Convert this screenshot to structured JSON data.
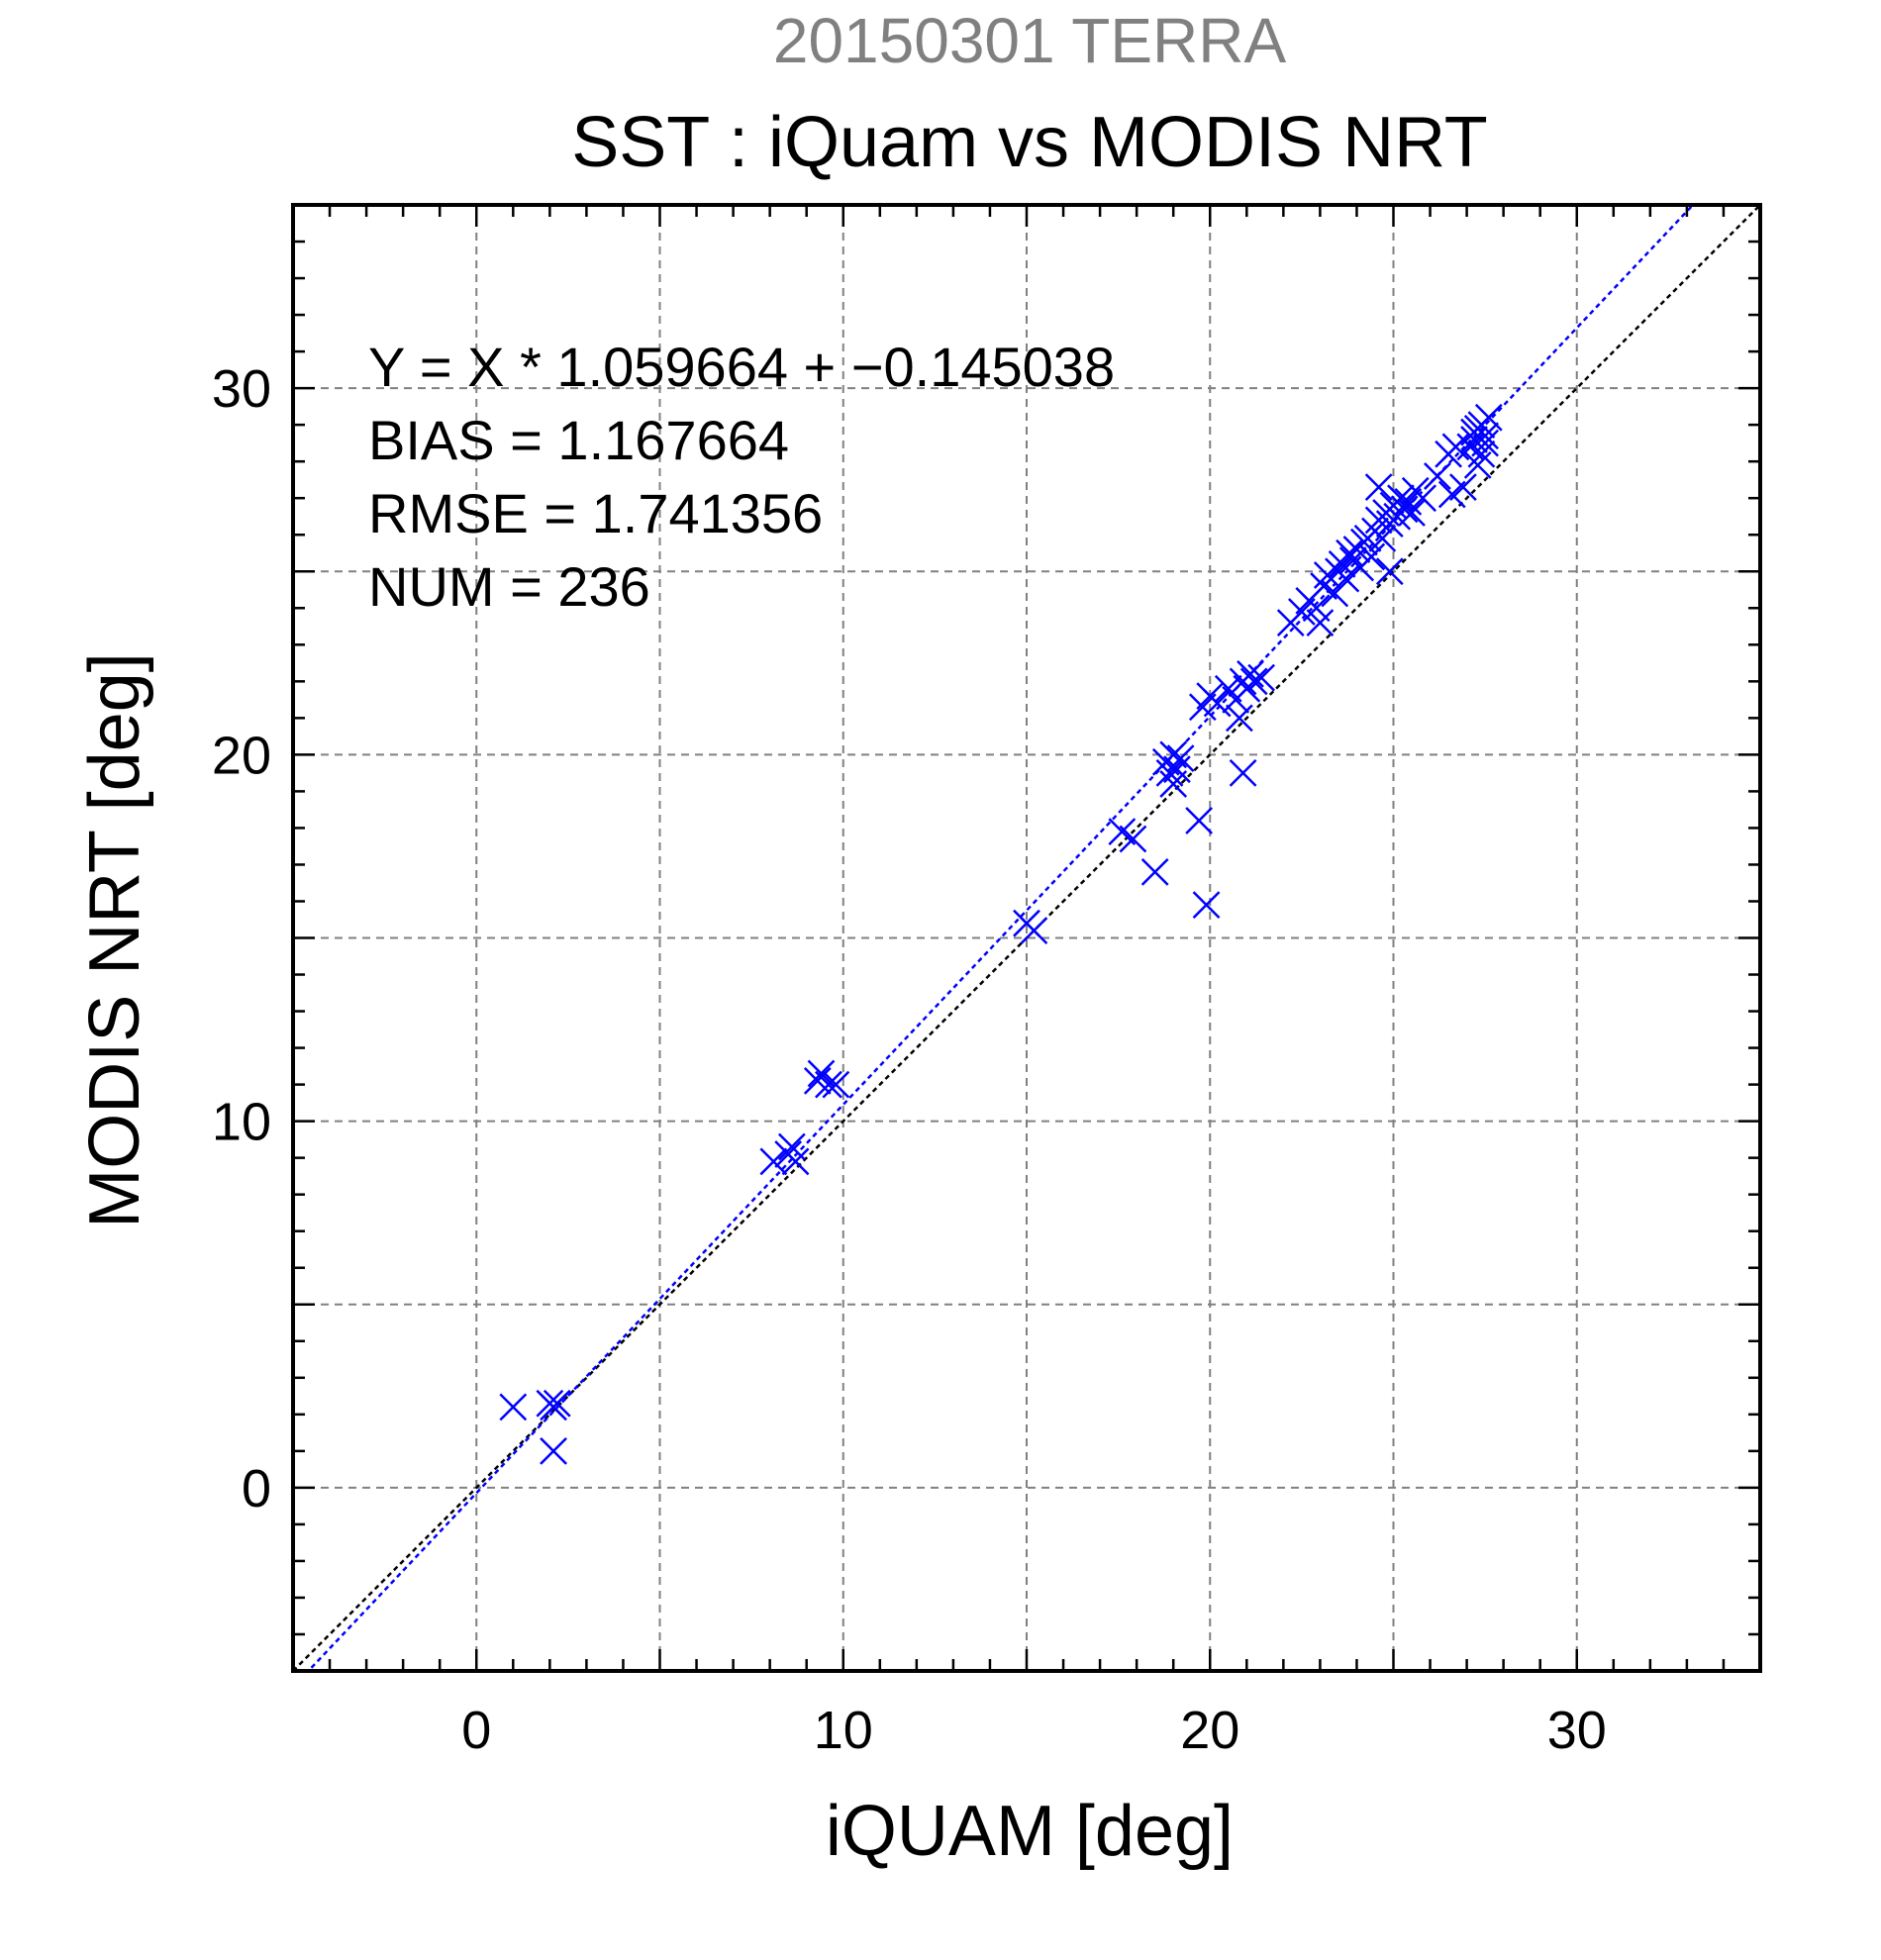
{
  "chart_data": {
    "type": "scatter",
    "title": "SST : iQuam vs MODIS NRT",
    "subtitle": "20150301 TERRA",
    "xlabel": "iQUAM [deg]",
    "ylabel": "MODIS NRT [deg]",
    "xlim": [
      -5,
      35
    ],
    "ylim": [
      -5,
      35
    ],
    "xticks": [
      0,
      10,
      20,
      30
    ],
    "yticks": [
      0,
      10,
      20,
      30
    ],
    "xtick_labels": [
      "0",
      "10",
      "20",
      "30"
    ],
    "ytick_labels": [
      "0",
      "10",
      "20",
      "30"
    ],
    "grid": true,
    "annotations": [
      "Y = X * 1.059664 + −0.145038",
      "BIAS = 1.167664",
      "RMSE = 1.741356",
      "NUM = 236"
    ],
    "fit": {
      "slope": 1.059664,
      "intercept": -0.145038
    },
    "colors": {
      "points": "#0000ff",
      "fit_line": "#0000ff",
      "identity_line": "#000000",
      "subtitle": "#808080",
      "grid": "#808080"
    },
    "points": [
      [
        1.0,
        2.2
      ],
      [
        2.0,
        2.3
      ],
      [
        2.1,
        2.2
      ],
      [
        2.2,
        2.3
      ],
      [
        2.1,
        1.0
      ],
      [
        8.1,
        8.9
      ],
      [
        8.5,
        9.1
      ],
      [
        8.6,
        9.3
      ],
      [
        8.7,
        8.9
      ],
      [
        9.3,
        11.1
      ],
      [
        9.4,
        11.3
      ],
      [
        9.6,
        11.0
      ],
      [
        9.8,
        11.0
      ],
      [
        15.0,
        15.4
      ],
      [
        15.2,
        15.2
      ],
      [
        17.6,
        17.9
      ],
      [
        17.9,
        17.7
      ],
      [
        18.5,
        16.8
      ],
      [
        19.7,
        18.2
      ],
      [
        19.9,
        15.9
      ],
      [
        18.8,
        19.8
      ],
      [
        18.9,
        19.5
      ],
      [
        19.0,
        20.0
      ],
      [
        19.1,
        19.6
      ],
      [
        19.2,
        19.9
      ],
      [
        19.0,
        19.2
      ],
      [
        19.8,
        21.3
      ],
      [
        20.0,
        21.6
      ],
      [
        20.2,
        21.4
      ],
      [
        20.5,
        21.8
      ],
      [
        20.7,
        21.5
      ],
      [
        20.8,
        21.0
      ],
      [
        20.9,
        22.0
      ],
      [
        21.0,
        21.8
      ],
      [
        21.1,
        22.2
      ],
      [
        21.2,
        22.0
      ],
      [
        21.4,
        22.1
      ],
      [
        20.9,
        19.5
      ],
      [
        22.2,
        23.6
      ],
      [
        22.5,
        23.9
      ],
      [
        22.7,
        24.2
      ],
      [
        22.9,
        24.0
      ],
      [
        23.0,
        23.6
      ],
      [
        23.1,
        24.6
      ],
      [
        23.2,
        24.9
      ],
      [
        23.4,
        24.4
      ],
      [
        23.5,
        25.0
      ],
      [
        23.6,
        25.2
      ],
      [
        23.7,
        24.8
      ],
      [
        23.8,
        25.5
      ],
      [
        23.9,
        25.3
      ],
      [
        24.0,
        25.6
      ],
      [
        24.1,
        25.1
      ],
      [
        24.2,
        25.8
      ],
      [
        24.3,
        25.9
      ],
      [
        24.4,
        25.4
      ],
      [
        24.5,
        26.1
      ],
      [
        24.6,
        26.4
      ],
      [
        24.7,
        25.9
      ],
      [
        24.8,
        26.6
      ],
      [
        24.9,
        26.3
      ],
      [
        25.0,
        26.8
      ],
      [
        25.1,
        26.5
      ],
      [
        25.2,
        27.0
      ],
      [
        25.3,
        26.7
      ],
      [
        25.4,
        26.9
      ],
      [
        25.5,
        26.6
      ],
      [
        24.6,
        27.3
      ],
      [
        24.9,
        25.0
      ],
      [
        25.6,
        27.2
      ],
      [
        25.8,
        27.0
      ],
      [
        26.2,
        27.6
      ],
      [
        26.5,
        28.2
      ],
      [
        26.7,
        28.4
      ],
      [
        26.6,
        27.1
      ],
      [
        26.9,
        27.3
      ],
      [
        27.2,
        28.6
      ],
      [
        27.3,
        28.9
      ],
      [
        27.4,
        29.0
      ],
      [
        27.5,
        28.7
      ],
      [
        27.4,
        28.2
      ],
      [
        27.3,
        27.9
      ],
      [
        27.6,
        29.2
      ],
      [
        27.5,
        28.5
      ],
      [
        27.2,
        28.8
      ],
      [
        27.1,
        28.4
      ]
    ]
  }
}
